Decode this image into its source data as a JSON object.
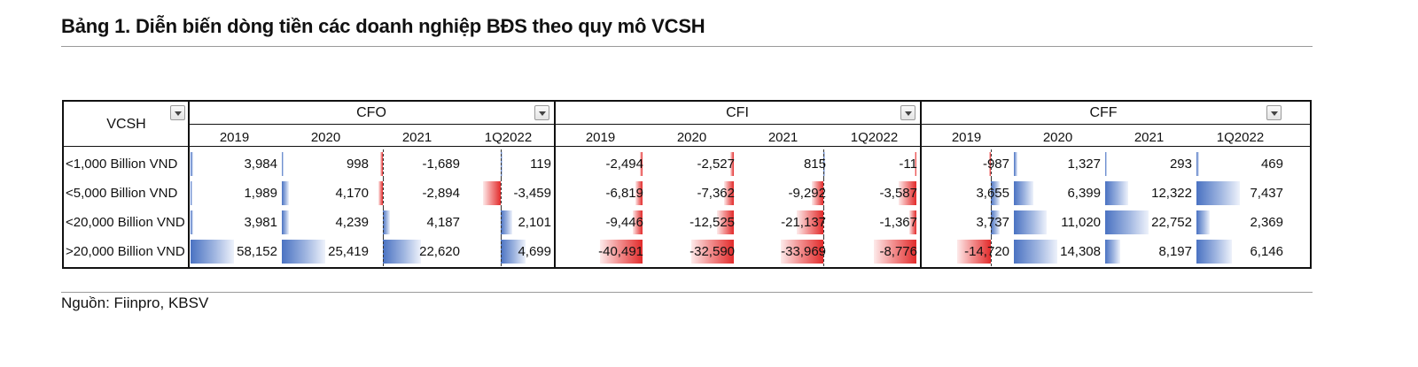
{
  "title": "Bảng 1. Diễn biến dòng tiền các doanh nghiệp BĐS theo quy mô VCSH",
  "source": "Nguồn: Fiinpro, KBSV",
  "table": {
    "row_header": "VCSH",
    "groups": [
      {
        "name": "CFO",
        "years": [
          "2019",
          "2020",
          "2021",
          "1Q2022"
        ]
      },
      {
        "name": "CFI",
        "years": [
          "2019",
          "2020",
          "2021",
          "1Q2022"
        ]
      },
      {
        "name": "CFF",
        "years": [
          "2019",
          "2020",
          "2021",
          "1Q2022"
        ]
      }
    ],
    "rows": [
      {
        "label": "<1,000 Billion VND",
        "values": [
          3984,
          998,
          -1689,
          119,
          -2494,
          -2527,
          815,
          -11,
          -987,
          1327,
          293,
          469
        ]
      },
      {
        "label": "<5,000 Billion VND",
        "values": [
          1989,
          4170,
          -2894,
          -3459,
          -6819,
          -7362,
          -9292,
          -3587,
          3655,
          6399,
          12322,
          7437
        ]
      },
      {
        "label": "<20,000 Billion VND",
        "values": [
          3981,
          4239,
          4187,
          2101,
          -9446,
          -12525,
          -21137,
          -1367,
          3737,
          11020,
          22752,
          2369
        ]
      },
      {
        "label": ">20,000 Billion VND",
        "values": [
          58152,
          25419,
          22620,
          4699,
          -40491,
          -32590,
          -33969,
          -8776,
          -14720,
          14308,
          8197,
          6146
        ]
      }
    ]
  },
  "colors": {
    "positive_bar": "#4a72c2",
    "negative_bar": "#e22b2b"
  }
}
